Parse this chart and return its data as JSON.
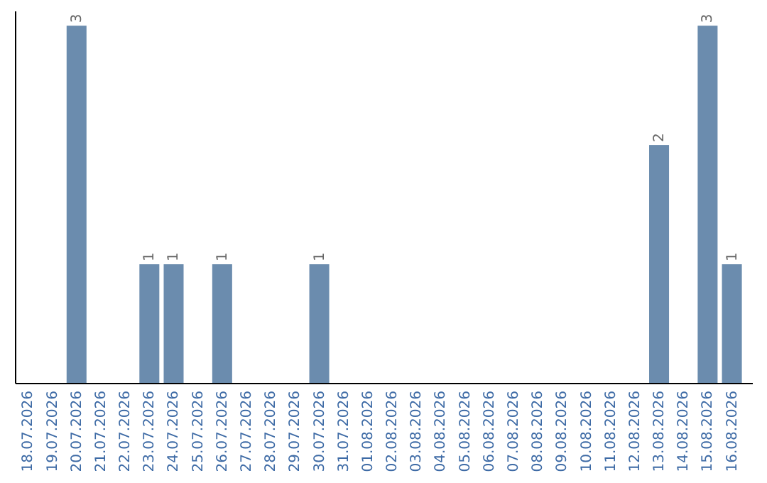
{
  "chart_data": {
    "type": "bar",
    "categories": [
      "18.07.2026",
      "19.07.2026",
      "20.07.2026",
      "21.07.2026",
      "22.07.2026",
      "23.07.2026",
      "24.07.2026",
      "25.07.2026",
      "26.07.2026",
      "27.07.2026",
      "28.07.2026",
      "29.07.2026",
      "30.07.2026",
      "31.07.2026",
      "01.08.2026",
      "02.08.2026",
      "03.08.2026",
      "04.08.2026",
      "05.08.2026",
      "06.08.2026",
      "07.08.2026",
      "08.08.2026",
      "09.08.2026",
      "10.08.2026",
      "11.08.2026",
      "12.08.2026",
      "13.08.2026",
      "14.08.2026",
      "15.08.2026",
      "16.08.2026"
    ],
    "values": [
      0,
      0,
      3,
      0,
      0,
      1,
      1,
      0,
      1,
      0,
      0,
      0,
      1,
      0,
      0,
      0,
      0,
      0,
      0,
      0,
      0,
      0,
      0,
      0,
      0,
      0,
      2,
      0,
      3,
      1
    ],
    "value_labels": [
      null,
      null,
      "3",
      null,
      null,
      "1",
      "1",
      null,
      "1",
      null,
      null,
      null,
      "1",
      null,
      null,
      null,
      null,
      null,
      null,
      null,
      null,
      null,
      null,
      null,
      null,
      null,
      "2",
      null,
      "3",
      "1"
    ],
    "color": "#6b8cae"
  }
}
